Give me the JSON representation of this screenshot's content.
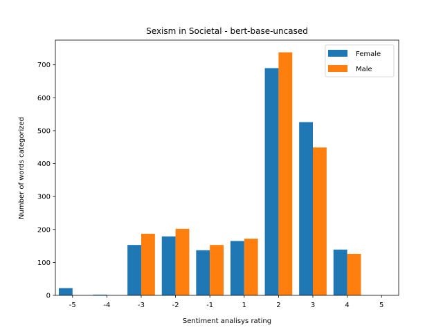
{
  "chart_data": {
    "type": "bar",
    "title": "Sexism in Societal - bert-base-uncased",
    "xlabel": "Sentiment analisys rating",
    "ylabel": "Number of words categorized",
    "categories": [
      "-5",
      "-4",
      "-3",
      "-2",
      "-1",
      "1",
      "2",
      "3",
      "4",
      "5"
    ],
    "series": [
      {
        "name": "Female",
        "color": "#1f77b4",
        "values": [
          22,
          2,
          153,
          179,
          137,
          165,
          690,
          526,
          139,
          0
        ]
      },
      {
        "name": "Male",
        "color": "#ff7f0e",
        "values": [
          0,
          0,
          187,
          202,
          153,
          172,
          738,
          449,
          126,
          0
        ]
      }
    ],
    "yticks": [
      0,
      100,
      200,
      300,
      400,
      500,
      600,
      700
    ],
    "ylim": [
      0,
      775
    ],
    "grid": false,
    "legend_position": "top-right"
  }
}
